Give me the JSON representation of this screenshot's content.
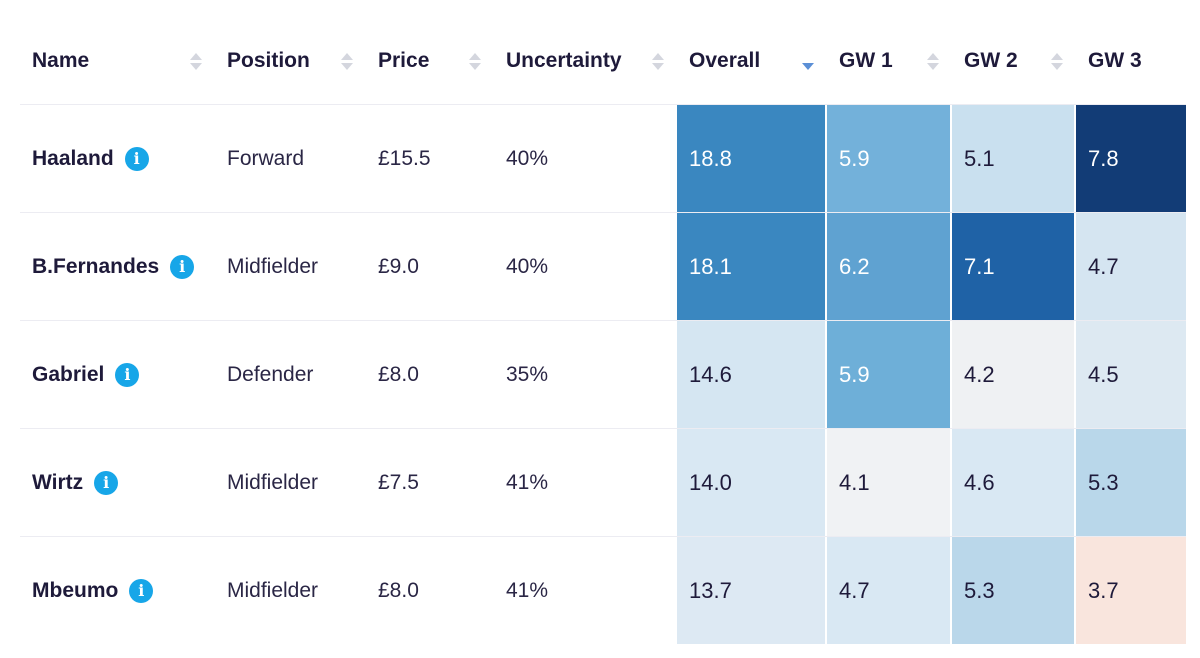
{
  "table": {
    "headers": {
      "name": "Name",
      "position": "Position",
      "price": "Price",
      "uncertainty": "Uncertainty",
      "overall": "Overall",
      "gw1": "GW 1",
      "gw2": "GW 2",
      "gw3": "GW 3"
    },
    "sorted_column": "Overall",
    "sort_direction": "descending",
    "rows": [
      {
        "name": "Haaland",
        "position": "Forward",
        "price": "£15.5",
        "uncertainty": "40%",
        "overall": {
          "value": "18.8",
          "color": "#3a87c0"
        },
        "gw1": {
          "value": "5.9",
          "color": "#73b1da"
        },
        "gw2": {
          "value": "5.1",
          "color": "#c9e0ef"
        },
        "gw3": {
          "value": "7.8",
          "color": "#123c76"
        }
      },
      {
        "name": "B.Fernandes",
        "position": "Midfielder",
        "price": "£9.0",
        "uncertainty": "40%",
        "overall": {
          "value": "18.1",
          "color": "#3a87c0"
        },
        "gw1": {
          "value": "6.2",
          "color": "#5fa2d1"
        },
        "gw2": {
          "value": "7.1",
          "color": "#1f62a6"
        },
        "gw3": {
          "value": "4.7",
          "color": "#d5e5f1"
        }
      },
      {
        "name": "Gabriel",
        "position": "Defender",
        "price": "£8.0",
        "uncertainty": "35%",
        "overall": {
          "value": "14.6",
          "color": "#d5e6f2"
        },
        "gw1": {
          "value": "5.9",
          "color": "#6eafd8"
        },
        "gw2": {
          "value": "4.2",
          "color": "#eff1f3"
        },
        "gw3": {
          "value": "4.5",
          "color": "#dde9f2"
        }
      },
      {
        "name": "Wirtz",
        "position": "Midfielder",
        "price": "£7.5",
        "uncertainty": "41%",
        "overall": {
          "value": "14.0",
          "color": "#d9e8f3"
        },
        "gw1": {
          "value": "4.1",
          "color": "#f0f2f4"
        },
        "gw2": {
          "value": "4.6",
          "color": "#d9e8f3"
        },
        "gw3": {
          "value": "5.3",
          "color": "#b9d7ea"
        }
      },
      {
        "name": "Mbeumo",
        "position": "Midfielder",
        "price": "£8.0",
        "uncertainty": "41%",
        "overall": {
          "value": "13.7",
          "color": "#dde9f3"
        },
        "gw1": {
          "value": "4.7",
          "color": "#d9e8f3"
        },
        "gw2": {
          "value": "5.3",
          "color": "#bad7ea"
        },
        "gw3": {
          "value": "3.7",
          "color": "#f9e5dd"
        }
      }
    ]
  },
  "colors": {
    "info_icon": "#17a6e8",
    "sort_active": "#5b8fd6",
    "sort_inactive": "#d4d6de",
    "text_primary": "#1e1a3a"
  },
  "icons": {
    "info": "info-icon",
    "sort": "sort-icon"
  }
}
